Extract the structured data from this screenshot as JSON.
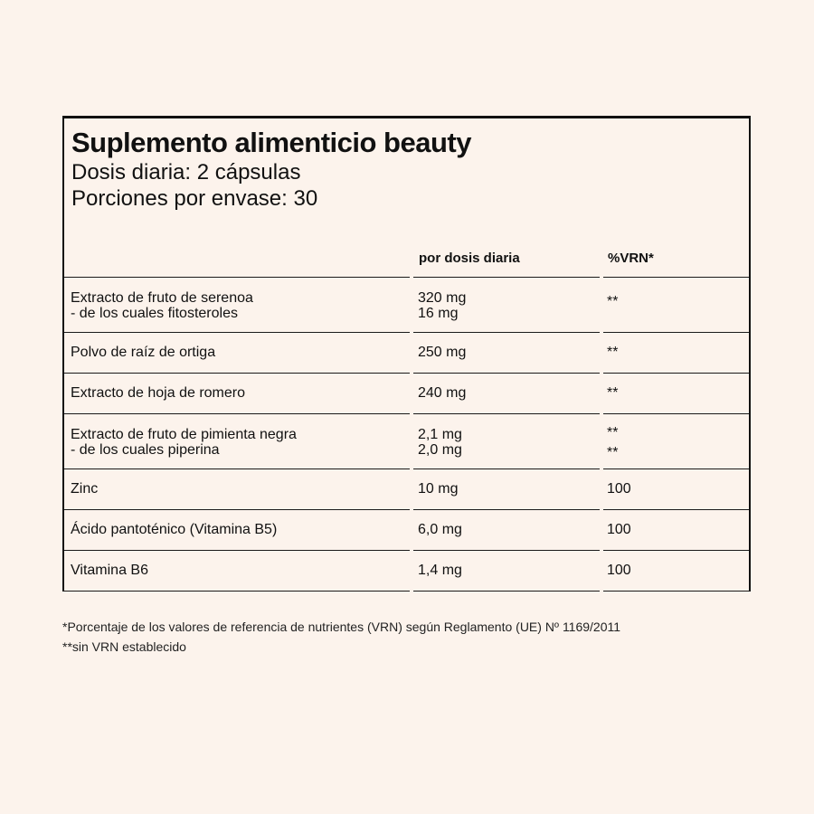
{
  "panel": {
    "title": "Suplemento alimenticio beauty",
    "dose": "Dosis diaria: 2 cápsulas",
    "servings": "Porciones por envase: 30"
  },
  "table": {
    "headers": [
      "por dosis diaria",
      "%VRN*"
    ],
    "rows": [
      {
        "name": [
          "Extracto de fruto de serenoa",
          "- de los cuales fitosteroles"
        ],
        "amount": [
          "320 mg",
          "16 mg"
        ],
        "vrn": [
          "**"
        ]
      },
      {
        "name": [
          "Polvo de raíz de ortiga"
        ],
        "amount": [
          "250 mg"
        ],
        "vrn": [
          "**"
        ]
      },
      {
        "name": [
          "Extracto de hoja de romero"
        ],
        "amount": [
          "240 mg"
        ],
        "vrn": [
          "**"
        ]
      },
      {
        "name": [
          "Extracto de fruto de pimienta negra",
          "- de los cuales piperina"
        ],
        "amount": [
          "2,1 mg",
          "2,0 mg"
        ],
        "vrn": [
          "**",
          "**"
        ]
      },
      {
        "name": [
          "Zinc"
        ],
        "amount": [
          "10 mg"
        ],
        "vrn": [
          "100"
        ]
      },
      {
        "name": [
          "Ácido pantoténico (Vitamina B5)"
        ],
        "amount": [
          "6,0 mg"
        ],
        "vrn": [
          "100"
        ]
      },
      {
        "name": [
          "Vitamina B6"
        ],
        "amount": [
          "1,4 mg"
        ],
        "vrn": [
          "100"
        ]
      }
    ]
  },
  "footnotes": [
    "*Porcentaje de los valores de referencia de nutrientes (VRN) según Reglamento (UE) Nº 1169/2011",
    "**sin VRN establecido"
  ]
}
